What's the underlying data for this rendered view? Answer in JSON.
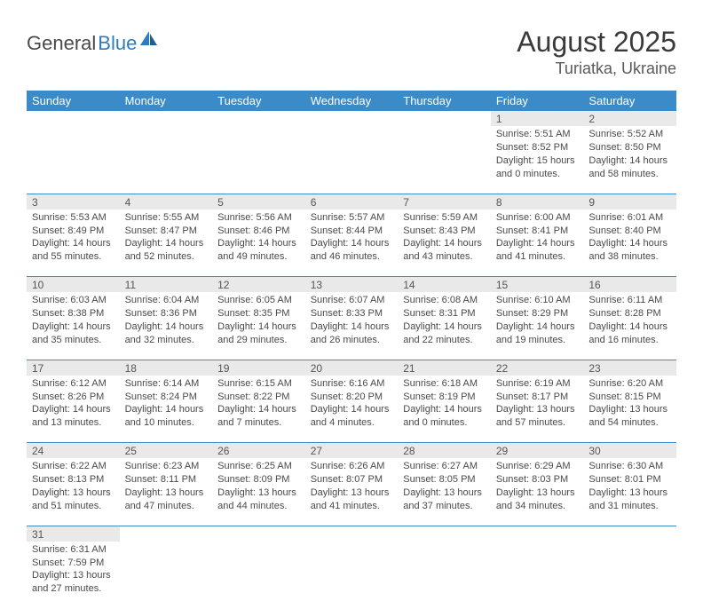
{
  "logo": {
    "text1": "General",
    "text2": "Blue"
  },
  "title": "August 2025",
  "subtitle": "Turiatka, Ukraine",
  "colors": {
    "header_bg": "#3b8bc8",
    "header_fg": "#ffffff",
    "daynum_bg": "#e9e9e9",
    "rule": "#3b8bc8",
    "text": "#4a4a4a",
    "logo_accent": "#2f7bbf"
  },
  "day_headers": [
    "Sunday",
    "Monday",
    "Tuesday",
    "Wednesday",
    "Thursday",
    "Friday",
    "Saturday"
  ],
  "weeks": [
    [
      null,
      null,
      null,
      null,
      null,
      {
        "n": "1",
        "sr": "Sunrise: 5:51 AM",
        "ss": "Sunset: 8:52 PM",
        "dl1": "Daylight: 15 hours",
        "dl2": "and 0 minutes."
      },
      {
        "n": "2",
        "sr": "Sunrise: 5:52 AM",
        "ss": "Sunset: 8:50 PM",
        "dl1": "Daylight: 14 hours",
        "dl2": "and 58 minutes."
      }
    ],
    [
      {
        "n": "3",
        "sr": "Sunrise: 5:53 AM",
        "ss": "Sunset: 8:49 PM",
        "dl1": "Daylight: 14 hours",
        "dl2": "and 55 minutes."
      },
      {
        "n": "4",
        "sr": "Sunrise: 5:55 AM",
        "ss": "Sunset: 8:47 PM",
        "dl1": "Daylight: 14 hours",
        "dl2": "and 52 minutes."
      },
      {
        "n": "5",
        "sr": "Sunrise: 5:56 AM",
        "ss": "Sunset: 8:46 PM",
        "dl1": "Daylight: 14 hours",
        "dl2": "and 49 minutes."
      },
      {
        "n": "6",
        "sr": "Sunrise: 5:57 AM",
        "ss": "Sunset: 8:44 PM",
        "dl1": "Daylight: 14 hours",
        "dl2": "and 46 minutes."
      },
      {
        "n": "7",
        "sr": "Sunrise: 5:59 AM",
        "ss": "Sunset: 8:43 PM",
        "dl1": "Daylight: 14 hours",
        "dl2": "and 43 minutes."
      },
      {
        "n": "8",
        "sr": "Sunrise: 6:00 AM",
        "ss": "Sunset: 8:41 PM",
        "dl1": "Daylight: 14 hours",
        "dl2": "and 41 minutes."
      },
      {
        "n": "9",
        "sr": "Sunrise: 6:01 AM",
        "ss": "Sunset: 8:40 PM",
        "dl1": "Daylight: 14 hours",
        "dl2": "and 38 minutes."
      }
    ],
    [
      {
        "n": "10",
        "sr": "Sunrise: 6:03 AM",
        "ss": "Sunset: 8:38 PM",
        "dl1": "Daylight: 14 hours",
        "dl2": "and 35 minutes."
      },
      {
        "n": "11",
        "sr": "Sunrise: 6:04 AM",
        "ss": "Sunset: 8:36 PM",
        "dl1": "Daylight: 14 hours",
        "dl2": "and 32 minutes."
      },
      {
        "n": "12",
        "sr": "Sunrise: 6:05 AM",
        "ss": "Sunset: 8:35 PM",
        "dl1": "Daylight: 14 hours",
        "dl2": "and 29 minutes."
      },
      {
        "n": "13",
        "sr": "Sunrise: 6:07 AM",
        "ss": "Sunset: 8:33 PM",
        "dl1": "Daylight: 14 hours",
        "dl2": "and 26 minutes."
      },
      {
        "n": "14",
        "sr": "Sunrise: 6:08 AM",
        "ss": "Sunset: 8:31 PM",
        "dl1": "Daylight: 14 hours",
        "dl2": "and 22 minutes."
      },
      {
        "n": "15",
        "sr": "Sunrise: 6:10 AM",
        "ss": "Sunset: 8:29 PM",
        "dl1": "Daylight: 14 hours",
        "dl2": "and 19 minutes."
      },
      {
        "n": "16",
        "sr": "Sunrise: 6:11 AM",
        "ss": "Sunset: 8:28 PM",
        "dl1": "Daylight: 14 hours",
        "dl2": "and 16 minutes."
      }
    ],
    [
      {
        "n": "17",
        "sr": "Sunrise: 6:12 AM",
        "ss": "Sunset: 8:26 PM",
        "dl1": "Daylight: 14 hours",
        "dl2": "and 13 minutes."
      },
      {
        "n": "18",
        "sr": "Sunrise: 6:14 AM",
        "ss": "Sunset: 8:24 PM",
        "dl1": "Daylight: 14 hours",
        "dl2": "and 10 minutes."
      },
      {
        "n": "19",
        "sr": "Sunrise: 6:15 AM",
        "ss": "Sunset: 8:22 PM",
        "dl1": "Daylight: 14 hours",
        "dl2": "and 7 minutes."
      },
      {
        "n": "20",
        "sr": "Sunrise: 6:16 AM",
        "ss": "Sunset: 8:20 PM",
        "dl1": "Daylight: 14 hours",
        "dl2": "and 4 minutes."
      },
      {
        "n": "21",
        "sr": "Sunrise: 6:18 AM",
        "ss": "Sunset: 8:19 PM",
        "dl1": "Daylight: 14 hours",
        "dl2": "and 0 minutes."
      },
      {
        "n": "22",
        "sr": "Sunrise: 6:19 AM",
        "ss": "Sunset: 8:17 PM",
        "dl1": "Daylight: 13 hours",
        "dl2": "and 57 minutes."
      },
      {
        "n": "23",
        "sr": "Sunrise: 6:20 AM",
        "ss": "Sunset: 8:15 PM",
        "dl1": "Daylight: 13 hours",
        "dl2": "and 54 minutes."
      }
    ],
    [
      {
        "n": "24",
        "sr": "Sunrise: 6:22 AM",
        "ss": "Sunset: 8:13 PM",
        "dl1": "Daylight: 13 hours",
        "dl2": "and 51 minutes."
      },
      {
        "n": "25",
        "sr": "Sunrise: 6:23 AM",
        "ss": "Sunset: 8:11 PM",
        "dl1": "Daylight: 13 hours",
        "dl2": "and 47 minutes."
      },
      {
        "n": "26",
        "sr": "Sunrise: 6:25 AM",
        "ss": "Sunset: 8:09 PM",
        "dl1": "Daylight: 13 hours",
        "dl2": "and 44 minutes."
      },
      {
        "n": "27",
        "sr": "Sunrise: 6:26 AM",
        "ss": "Sunset: 8:07 PM",
        "dl1": "Daylight: 13 hours",
        "dl2": "and 41 minutes."
      },
      {
        "n": "28",
        "sr": "Sunrise: 6:27 AM",
        "ss": "Sunset: 8:05 PM",
        "dl1": "Daylight: 13 hours",
        "dl2": "and 37 minutes."
      },
      {
        "n": "29",
        "sr": "Sunrise: 6:29 AM",
        "ss": "Sunset: 8:03 PM",
        "dl1": "Daylight: 13 hours",
        "dl2": "and 34 minutes."
      },
      {
        "n": "30",
        "sr": "Sunrise: 6:30 AM",
        "ss": "Sunset: 8:01 PM",
        "dl1": "Daylight: 13 hours",
        "dl2": "and 31 minutes."
      }
    ],
    [
      {
        "n": "31",
        "sr": "Sunrise: 6:31 AM",
        "ss": "Sunset: 7:59 PM",
        "dl1": "Daylight: 13 hours",
        "dl2": "and 27 minutes."
      },
      null,
      null,
      null,
      null,
      null,
      null
    ]
  ]
}
